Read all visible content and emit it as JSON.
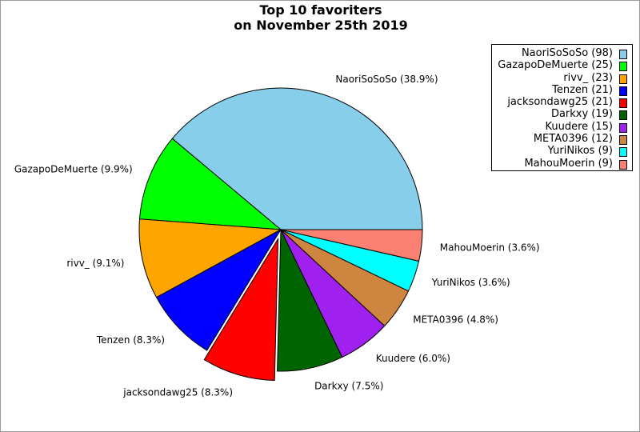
{
  "title_line1": "Top 10 favoriters",
  "title_line2": "on November 25th 2019",
  "chart_data": {
    "type": "pie",
    "title": "Top 10 favoriters on November 25th 2019",
    "legend_position": "top-right",
    "slices": [
      {
        "name": "NaoriSoSoSo",
        "value": 98,
        "percent": 38.9,
        "color": "#87ceeb",
        "legend": "NaoriSoSoSo (98)",
        "label": "NaoriSoSoSo (38.9%)"
      },
      {
        "name": "GazapoDeMuerte",
        "value": 25,
        "percent": 9.9,
        "color": "#00ff00",
        "legend": "GazapoDeMuerte (25)",
        "label": "GazapoDeMuerte (9.9%)"
      },
      {
        "name": "rivv_",
        "value": 23,
        "percent": 9.1,
        "color": "#ffa500",
        "legend": "rivv_ (23)",
        "label": "rivv_ (9.1%)"
      },
      {
        "name": "Tenzen",
        "value": 21,
        "percent": 8.3,
        "color": "#0000ff",
        "legend": "Tenzen (21)",
        "label": "Tenzen (8.3%)"
      },
      {
        "name": "jacksondawg25",
        "value": 21,
        "percent": 8.3,
        "color": "#ff0000",
        "legend": "jacksondawg25 (21)",
        "label": "jacksondawg25 (8.3%)",
        "exploded": true
      },
      {
        "name": "Darkxy",
        "value": 19,
        "percent": 7.5,
        "color": "#006400",
        "legend": "Darkxy (19)",
        "label": "Darkxy (7.5%)"
      },
      {
        "name": "Kuudere",
        "value": 15,
        "percent": 6.0,
        "color": "#a020f0",
        "legend": "Kuudere (15)",
        "label": "Kuudere (6.0%)"
      },
      {
        "name": "META0396",
        "value": 12,
        "percent": 4.8,
        "color": "#cd853f",
        "legend": "META0396 (12)",
        "label": "META0396 (4.8%)"
      },
      {
        "name": "YuriNikos",
        "value": 9,
        "percent": 3.6,
        "color": "#00ffff",
        "legend": "YuriNikos (9)",
        "label": "YuriNikos (3.6%)"
      },
      {
        "name": "MahouMoerin",
        "value": 9,
        "percent": 3.6,
        "color": "#fa8072",
        "legend": "MahouMoerin (9)",
        "label": "MahouMoerin (3.6%)"
      }
    ]
  }
}
